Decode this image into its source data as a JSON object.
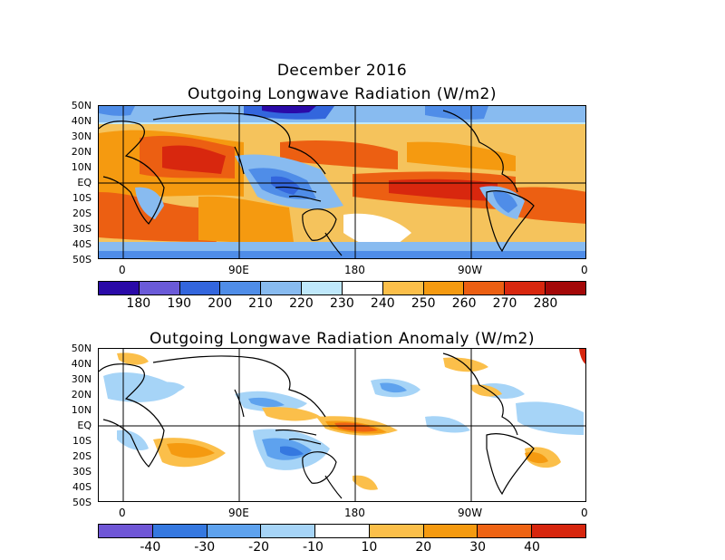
{
  "header": {
    "title": "December 2016"
  },
  "panels": [
    {
      "title": "Outgoing Longwave Radiation (W/m2)"
    },
    {
      "title": "Outgoing Longwave Radiation Anomaly (W/m2)"
    }
  ],
  "lat_labels": [
    "50N",
    "40N",
    "30N",
    "20N",
    "10N",
    "EQ",
    "10S",
    "20S",
    "30S",
    "40S",
    "50S"
  ],
  "lon_labels": [
    "0",
    "90E",
    "180",
    "90W",
    "0"
  ],
  "colorbars": [
    {
      "labels": [
        "180",
        "190",
        "200",
        "210",
        "220",
        "230",
        "240",
        "250",
        "260",
        "270",
        "280"
      ],
      "colors": [
        "#2a0aa8",
        "#6a5ad8",
        "#3366dd",
        "#4f8de8",
        "#88bbf0",
        "#bfe8fb",
        "#ffffff",
        "#fbbf4a",
        "#f59a10",
        "#ec5f12",
        "#d8270e",
        "#a40808"
      ]
    },
    {
      "labels": [
        "-40",
        "-30",
        "-20",
        "-10",
        "10",
        "20",
        "30",
        "40"
      ],
      "colors": [
        "#6f56d6",
        "#3578e0",
        "#5ea2ee",
        "#a6d4f7",
        "#ffffff",
        "#fbbf4a",
        "#f59a10",
        "#ef6414",
        "#d7260e"
      ]
    }
  ]
}
